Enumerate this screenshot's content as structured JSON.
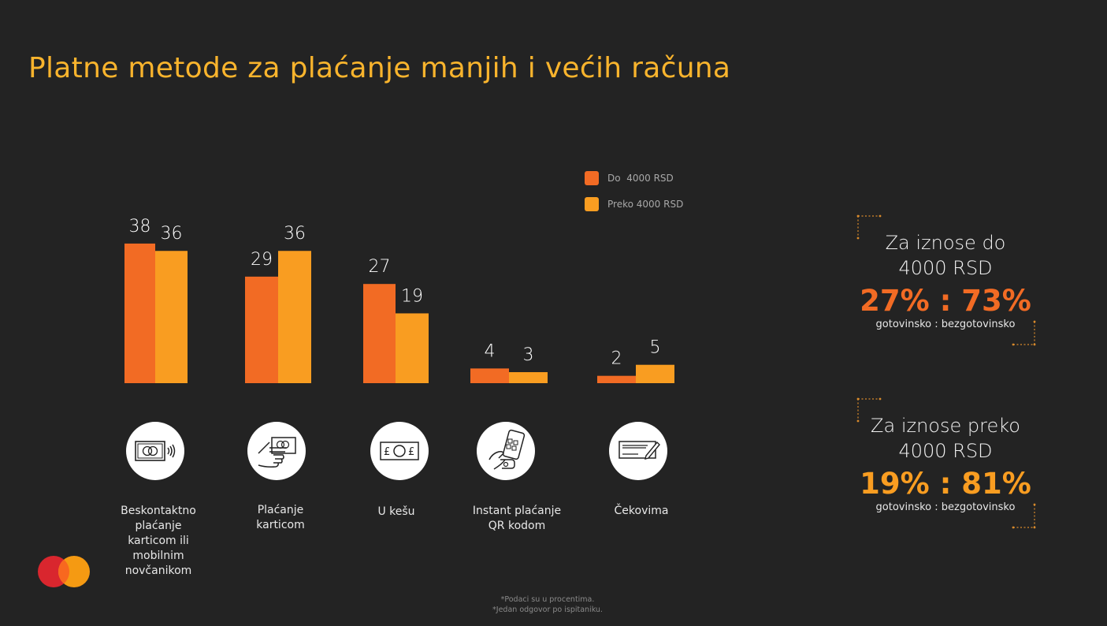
{
  "title": "Platne metode za plaćanje manjih i većih računa",
  "legend": [
    {
      "label": "Do  4000 RSD",
      "color": "#F26B24"
    },
    {
      "label": "Preko 4000 RSD",
      "color": "#F99D21"
    }
  ],
  "chart_data": {
    "type": "bar",
    "title": "Platne metode za plaćanje manjih i većih računa",
    "xlabel": "",
    "ylabel": "",
    "ylim": [
      0,
      40
    ],
    "grid": false,
    "legend_position": "top-right",
    "categories": [
      "Beskontaktno plaćanje karticom ili mobilnim novčanikom",
      "Plaćanje karticom",
      "U kešu",
      "Instant plaćanje QR kodom",
      "Čekovima"
    ],
    "series": [
      {
        "name": "Do  4000 RSD",
        "color": "#F26B24",
        "values": [
          38,
          29,
          27,
          4,
          2
        ]
      },
      {
        "name": "Preko 4000 RSD",
        "color": "#F99D21",
        "values": [
          36,
          36,
          19,
          3,
          5
        ]
      }
    ]
  },
  "categories": [
    {
      "icon": "contactless-card-icon",
      "label_lines": [
        "Beskontaktno",
        "plaćanje",
        "karticom ili",
        "mobilnim",
        "novčanikom"
      ]
    },
    {
      "icon": "hand-card-icon",
      "label_lines": [
        "Plaćanje",
        "karticom"
      ]
    },
    {
      "icon": "cash-banknote-icon",
      "label_lines": [
        "U kešu"
      ]
    },
    {
      "icon": "qr-phone-icon",
      "label_lines": [
        "Instant plaćanje",
        "QR kodom"
      ]
    },
    {
      "icon": "cheque-icon",
      "label_lines": [
        "Čekovima"
      ]
    }
  ],
  "summaries": [
    {
      "heading_lines": [
        "Za iznose do",
        "4000 RSD"
      ],
      "ratio": "27% : 73%",
      "ratio_color": "#F26B24",
      "caption": "gotovinsko : bezgotovinsko"
    },
    {
      "heading_lines": [
        "Za iznose preko",
        "4000 RSD"
      ],
      "ratio": "19% : 81%",
      "ratio_color": "#F99D21",
      "caption": "gotovinsko : bezgotovinsko"
    }
  ],
  "footnotes": [
    "*Podaci su u procentima.",
    "*Jedan odgovor po ispitaniku."
  ],
  "logo": {
    "name": "mastercard-logo",
    "colors": [
      "#EB001B",
      "#F79E1B",
      "#FF5F00"
    ]
  }
}
